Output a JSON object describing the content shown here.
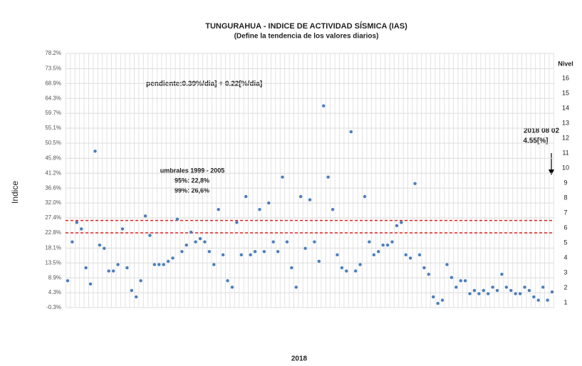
{
  "chart_data": {
    "type": "scatter",
    "title": "TUNGURAHUA - INDICE DE ACTIVIDAD SÍSMICA (IAS)",
    "subtitle": "(Define la tendencia de los valores diarios)",
    "y_label": "Indice",
    "x_label": "2018",
    "y2_label": "Nivel",
    "color": "#4a7ebb",
    "values": [
      8,
      20,
      26,
      24,
      12,
      7,
      48,
      19,
      18,
      11,
      11,
      13,
      24,
      12,
      5,
      3,
      8,
      28,
      22,
      13,
      13,
      13,
      14,
      15,
      27,
      17,
      19,
      23,
      20,
      21,
      20,
      17,
      13,
      30,
      16,
      8,
      6,
      26,
      16,
      34,
      16,
      17,
      30,
      17,
      32,
      20,
      17,
      40,
      20,
      12,
      6,
      34,
      18,
      33,
      20,
      14,
      62,
      40,
      30,
      16,
      12,
      11,
      54,
      11,
      13,
      34,
      20,
      16,
      17,
      19,
      19,
      20,
      25,
      26,
      16,
      15,
      38,
      16,
      12,
      10,
      3,
      1,
      2,
      13,
      9,
      6,
      8,
      8,
      4,
      5,
      4,
      5,
      4,
      6,
      5,
      10,
      6,
      5,
      4,
      4,
      6,
      5,
      3,
      2,
      6,
      2,
      4.55
    ],
    "ylim": [
      -0.3,
      78.2
    ],
    "yticks": [
      {
        "value": -0.3,
        "label": "-0.3%"
      },
      {
        "value": 4.3,
        "label": "4.3%"
      },
      {
        "value": 8.9,
        "label": "8.9%"
      },
      {
        "value": 13.5,
        "label": "13.5%"
      },
      {
        "value": 18.1,
        "label": "18.1%"
      },
      {
        "value": 22.8,
        "label": "22.8%"
      },
      {
        "value": 27.4,
        "label": "27.4%"
      },
      {
        "value": 32.0,
        "label": "32.0%"
      },
      {
        "value": 36.6,
        "label": "36.6%"
      },
      {
        "value": 41.2,
        "label": "41.2%"
      },
      {
        "value": 45.8,
        "label": "45.8%"
      },
      {
        "value": 50.5,
        "label": "50.5%"
      },
      {
        "value": 55.1,
        "label": "55.1%"
      },
      {
        "value": 59.7,
        "label": "59.7%"
      },
      {
        "value": 64.3,
        "label": "64.3%"
      },
      {
        "value": 68.9,
        "label": "68.9%"
      },
      {
        "value": 73.5,
        "label": "73.5%"
      },
      {
        "value": 78.2,
        "label": "78.2%"
      }
    ],
    "y2lim": [
      0.667,
      17.67
    ],
    "y2ticks": [
      1,
      2,
      3,
      4,
      5,
      6,
      7,
      8,
      9,
      10,
      11,
      12,
      13,
      14,
      15,
      16
    ],
    "grid": true,
    "thresholds": [
      26.6,
      22.8
    ],
    "threshold_color": "#e02020",
    "threshold_title": "umbrales 1999 - 2005",
    "threshold_labels": [
      "95%:   22,8%",
      "99%:   26,6%"
    ],
    "slope_note": "pendiente:0.39%/dia] +  0.22[%/dia]",
    "last_date": "2018 08 02",
    "last_value": "4.55[%]"
  }
}
